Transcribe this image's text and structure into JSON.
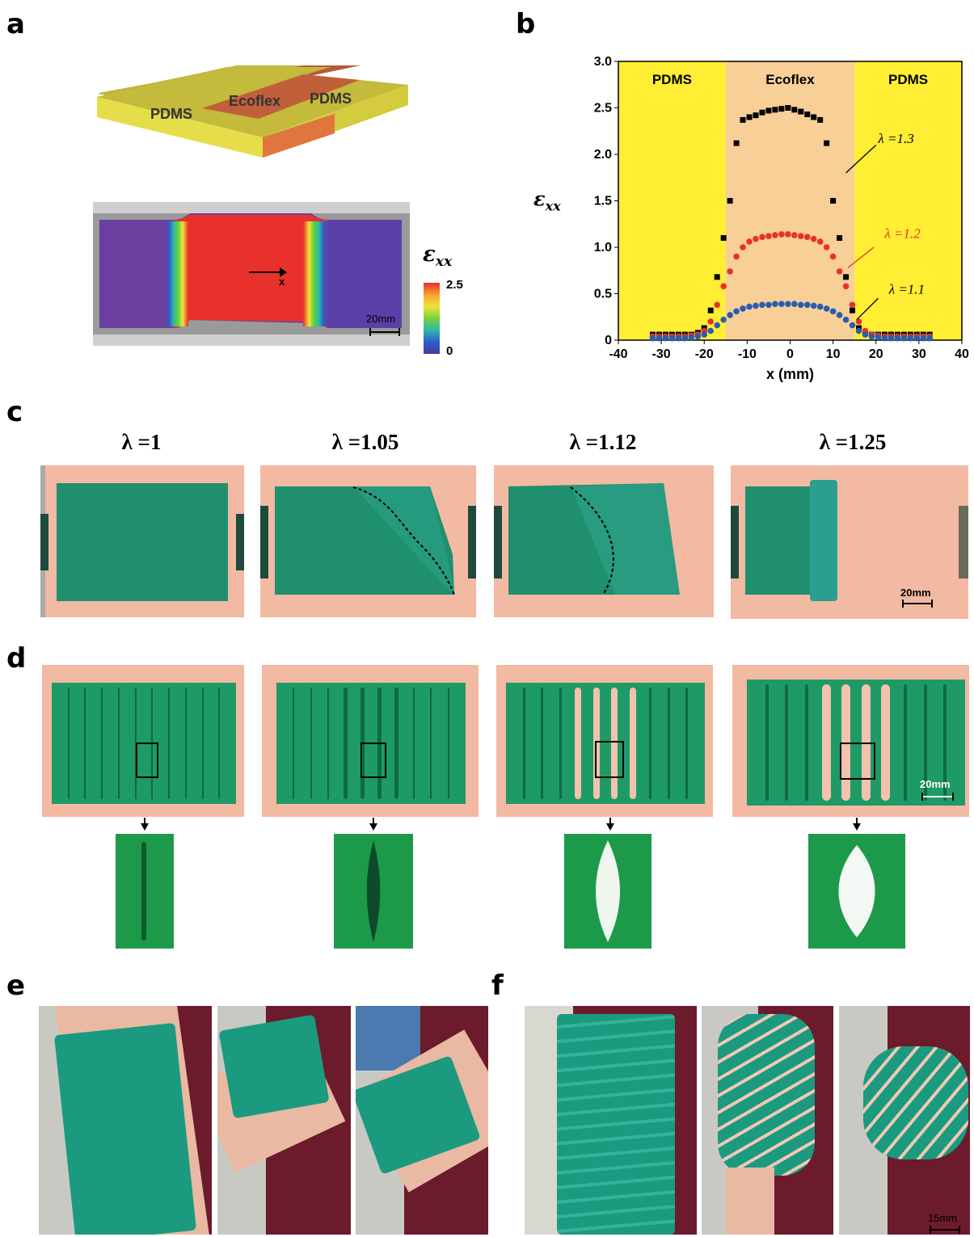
{
  "panels": {
    "a": "a",
    "b": "b",
    "c": "c",
    "d": "d",
    "e": "e",
    "f": "f"
  },
  "panel_a": {
    "block_labels": [
      "PDMS",
      "Ecoflex",
      "PDMS"
    ],
    "arrow_label": "x",
    "scale_label": "20mm",
    "colorbar_symbol": "ε",
    "colorbar_subscript": "xx",
    "colorbar_max": "2.5",
    "colorbar_min": "0"
  },
  "chart_data": {
    "type": "scatter",
    "xlabel": "x (mm)",
    "ylabel_symbol": "ε",
    "ylabel_subscript": "xx",
    "xlim": [
      -40,
      40
    ],
    "ylim": [
      0,
      3.0
    ],
    "xticks": [
      "-40",
      "-30",
      "-20",
      "-10",
      "0",
      "10",
      "20",
      "30",
      "40"
    ],
    "yticks": [
      "0",
      "0.5",
      "1.0",
      "1.5",
      "2.0",
      "2.5",
      "3.0"
    ],
    "regions": [
      {
        "label": "PDMS",
        "x0": -40,
        "x1": -15,
        "color": "#ffee33"
      },
      {
        "label": "Ecoflex",
        "x0": -15,
        "x1": 15,
        "color": "#f8cf96"
      },
      {
        "label": "PDMS",
        "x0": 15,
        "x1": 40,
        "color": "#ffee33"
      }
    ],
    "series": [
      {
        "name": "λ =1.3",
        "color": "#000000",
        "marker": "square",
        "x": [
          -32,
          -30.5,
          -29,
          -27.5,
          -26,
          -24.5,
          -23,
          -21.5,
          -20,
          -18.5,
          -17,
          -15.5,
          -14,
          -12.5,
          -11,
          -9.5,
          -8,
          -6.5,
          -5,
          -3.5,
          -2,
          -0.5,
          1,
          2.5,
          4,
          5.5,
          7,
          8.5,
          10,
          11.5,
          13,
          14.5,
          16,
          17.5,
          19,
          20.5,
          22,
          23.5,
          25,
          26.5,
          28,
          29.5,
          31,
          32.5
        ],
        "y": [
          0.06,
          0.06,
          0.06,
          0.06,
          0.06,
          0.06,
          0.06,
          0.08,
          0.13,
          0.32,
          0.68,
          1.1,
          1.5,
          2.12,
          2.37,
          2.4,
          2.42,
          2.45,
          2.47,
          2.48,
          2.49,
          2.5,
          2.48,
          2.46,
          2.43,
          2.4,
          2.37,
          2.12,
          1.5,
          1.1,
          0.68,
          0.32,
          0.13,
          0.08,
          0.06,
          0.06,
          0.06,
          0.06,
          0.06,
          0.06,
          0.06,
          0.06,
          0.06,
          0.06
        ]
      },
      {
        "name": "λ =1.2",
        "color": "#e8312a",
        "marker": "circle",
        "x": [
          -32,
          -30.5,
          -29,
          -27.5,
          -26,
          -24.5,
          -23,
          -21.5,
          -20,
          -18.5,
          -17,
          -15.5,
          -14,
          -12.5,
          -11,
          -9.5,
          -8,
          -6.5,
          -5,
          -3.5,
          -2,
          -0.5,
          1,
          2.5,
          4,
          5.5,
          7,
          8.5,
          10,
          11.5,
          13,
          14.5,
          16,
          17.5,
          19,
          20.5,
          22,
          23.5,
          25,
          26.5,
          28,
          29.5,
          31,
          32.5
        ],
        "y": [
          0.04,
          0.04,
          0.04,
          0.04,
          0.04,
          0.04,
          0.05,
          0.06,
          0.1,
          0.2,
          0.38,
          0.58,
          0.74,
          0.9,
          1.0,
          1.06,
          1.09,
          1.11,
          1.12,
          1.13,
          1.14,
          1.14,
          1.13,
          1.12,
          1.11,
          1.09,
          1.06,
          1.0,
          0.9,
          0.74,
          0.58,
          0.38,
          0.2,
          0.1,
          0.06,
          0.05,
          0.04,
          0.04,
          0.04,
          0.04,
          0.04,
          0.04,
          0.04,
          0.04
        ]
      },
      {
        "name": "λ =1.1",
        "color": "#2a5db0",
        "marker": "circle",
        "x": [
          -32,
          -30.5,
          -29,
          -27.5,
          -26,
          -24.5,
          -23,
          -21.5,
          -20,
          -18.5,
          -17,
          -15.5,
          -14,
          -12.5,
          -11,
          -9.5,
          -8,
          -6.5,
          -5,
          -3.5,
          -2,
          -0.5,
          1,
          2.5,
          4,
          5.5,
          7,
          8.5,
          10,
          11.5,
          13,
          14.5,
          16,
          17.5,
          19,
          20.5,
          22,
          23.5,
          25,
          26.5,
          28,
          29.5,
          31,
          32.5
        ],
        "y": [
          0.02,
          0.02,
          0.02,
          0.02,
          0.02,
          0.02,
          0.03,
          0.04,
          0.06,
          0.1,
          0.16,
          0.22,
          0.27,
          0.31,
          0.34,
          0.36,
          0.37,
          0.38,
          0.38,
          0.39,
          0.39,
          0.39,
          0.39,
          0.38,
          0.38,
          0.37,
          0.36,
          0.34,
          0.31,
          0.27,
          0.22,
          0.16,
          0.1,
          0.06,
          0.04,
          0.03,
          0.02,
          0.02,
          0.02,
          0.02,
          0.02,
          0.02,
          0.02,
          0.02
        ]
      }
    ],
    "annotations": [
      {
        "text": "λ =1.3",
        "color": "#000000"
      },
      {
        "text": "λ =1.2",
        "color": "#e8312a"
      },
      {
        "text": "λ =1.1",
        "color": "#000000"
      }
    ]
  },
  "panel_c": {
    "stretch_labels": [
      "λ =1",
      "λ =1.05",
      "λ =1.12",
      "λ =1.25"
    ],
    "scale_label": "20mm"
  },
  "panel_d": {
    "scale_label": "20mm"
  },
  "panel_f": {
    "scale_label": "15mm"
  },
  "colors": {
    "pdms": "#c9c23a",
    "ecoflex": "#c9643a",
    "green": "#1f8f6e",
    "skin": "#f2b9a3",
    "maroon": "#6b1b2b"
  }
}
